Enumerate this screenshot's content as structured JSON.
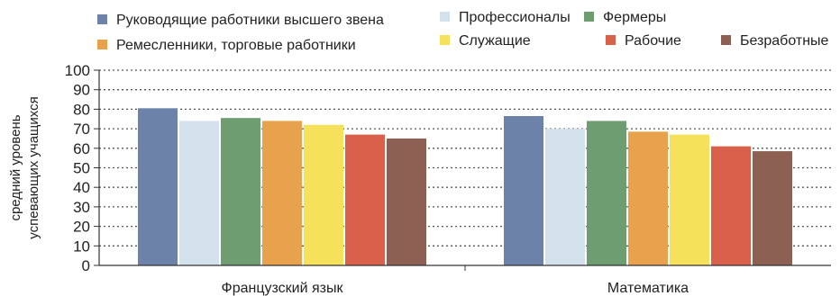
{
  "chart_data": {
    "type": "bar",
    "categories": [
      "Французский язык",
      "Математика"
    ],
    "ylabel_lines": [
      "средний уровень",
      "успевающих учащихся"
    ],
    "ylim": [
      0,
      100
    ],
    "yticks": [
      0,
      10,
      20,
      30,
      40,
      50,
      60,
      70,
      80,
      90,
      100
    ],
    "grid": true,
    "legend_position": "top",
    "series": [
      {
        "name": "Руководящие работники высшего звена",
        "color": "#6c82a8",
        "values": [
          80.5,
          76.5
        ]
      },
      {
        "name": "Профессионалы",
        "color": "#d3e1ec",
        "values": [
          74,
          70
        ]
      },
      {
        "name": "Фермеры",
        "color": "#6e9d72",
        "values": [
          75.5,
          74
        ]
      },
      {
        "name": "Ремесленники, торговые работники",
        "color": "#e8a14c",
        "values": [
          74,
          68.5
        ]
      },
      {
        "name": "Служащие",
        "color": "#f5e15a",
        "values": [
          72,
          67
        ]
      },
      {
        "name": "Рабочие",
        "color": "#d9604a",
        "values": [
          67,
          61
        ]
      },
      {
        "name": "Безработные",
        "color": "#8c6154",
        "values": [
          65,
          58.5
        ]
      }
    ]
  }
}
